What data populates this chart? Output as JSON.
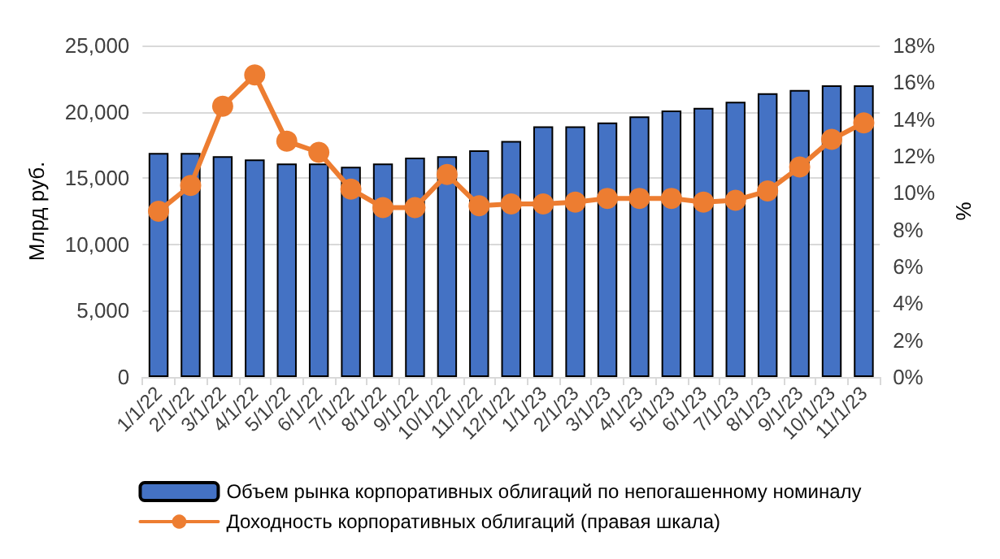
{
  "chart_data": {
    "type": "bar",
    "ylabel": "Млрд руб.",
    "y2label": "%",
    "categories": [
      "1/1/22",
      "2/1/22",
      "3/1/22",
      "4/1/22",
      "5/1/22",
      "6/1/22",
      "7/1/22",
      "8/1/22",
      "9/1/22",
      "10/1/22",
      "11/1/22",
      "12/1/22",
      "1/1/23",
      "2/1/23",
      "3/1/23",
      "4/1/23",
      "5/1/23",
      "6/1/23",
      "7/1/23",
      "8/1/23",
      "9/1/23",
      "10/1/23",
      "11/1/23"
    ],
    "series": [
      {
        "name": "Объем рынка корпоративных облигаций по непогашенному номиналу",
        "color": "#4472c4",
        "values": [
          16900,
          16900,
          16650,
          16400,
          16100,
          16100,
          15850,
          16100,
          16550,
          16650,
          17100,
          17800,
          18900,
          18900,
          19200,
          19650,
          20100,
          20300,
          20750,
          21400,
          21650,
          22000,
          22000
        ]
      },
      {
        "name": "Доходность корпоративных облигаций (правая шкала)",
        "type": "line",
        "axis": "y2",
        "color": "#ed7d31",
        "marker": "circle",
        "values": [
          9.0,
          10.4,
          14.7,
          16.4,
          12.8,
          12.2,
          10.2,
          9.2,
          9.2,
          11.0,
          9.3,
          9.4,
          9.4,
          9.5,
          9.7,
          9.7,
          9.7,
          9.5,
          9.6,
          10.1,
          11.4,
          12.9,
          13.8
        ]
      }
    ],
    "ylim": [
      0,
      25000
    ],
    "yticks": [
      {
        "value": 0,
        "label": "0"
      },
      {
        "value": 5000,
        "label": "5,000"
      },
      {
        "value": 10000,
        "label": "10,000"
      },
      {
        "value": 15000,
        "label": "15,000"
      },
      {
        "value": 20000,
        "label": "20,000"
      },
      {
        "value": 25000,
        "label": "25,000"
      }
    ],
    "y2lim": [
      0,
      18
    ],
    "y2ticks": [
      {
        "value": 0,
        "label": "0%"
      },
      {
        "value": 2,
        "label": "2%"
      },
      {
        "value": 4,
        "label": "4%"
      },
      {
        "value": 6,
        "label": "6%"
      },
      {
        "value": 8,
        "label": "8%"
      },
      {
        "value": 10,
        "label": "10%"
      },
      {
        "value": 12,
        "label": "12%"
      },
      {
        "value": 14,
        "label": "14%"
      },
      {
        "value": 16,
        "label": "16%"
      },
      {
        "value": 18,
        "label": "18%"
      }
    ],
    "grid": "y",
    "legend": "bottom"
  }
}
